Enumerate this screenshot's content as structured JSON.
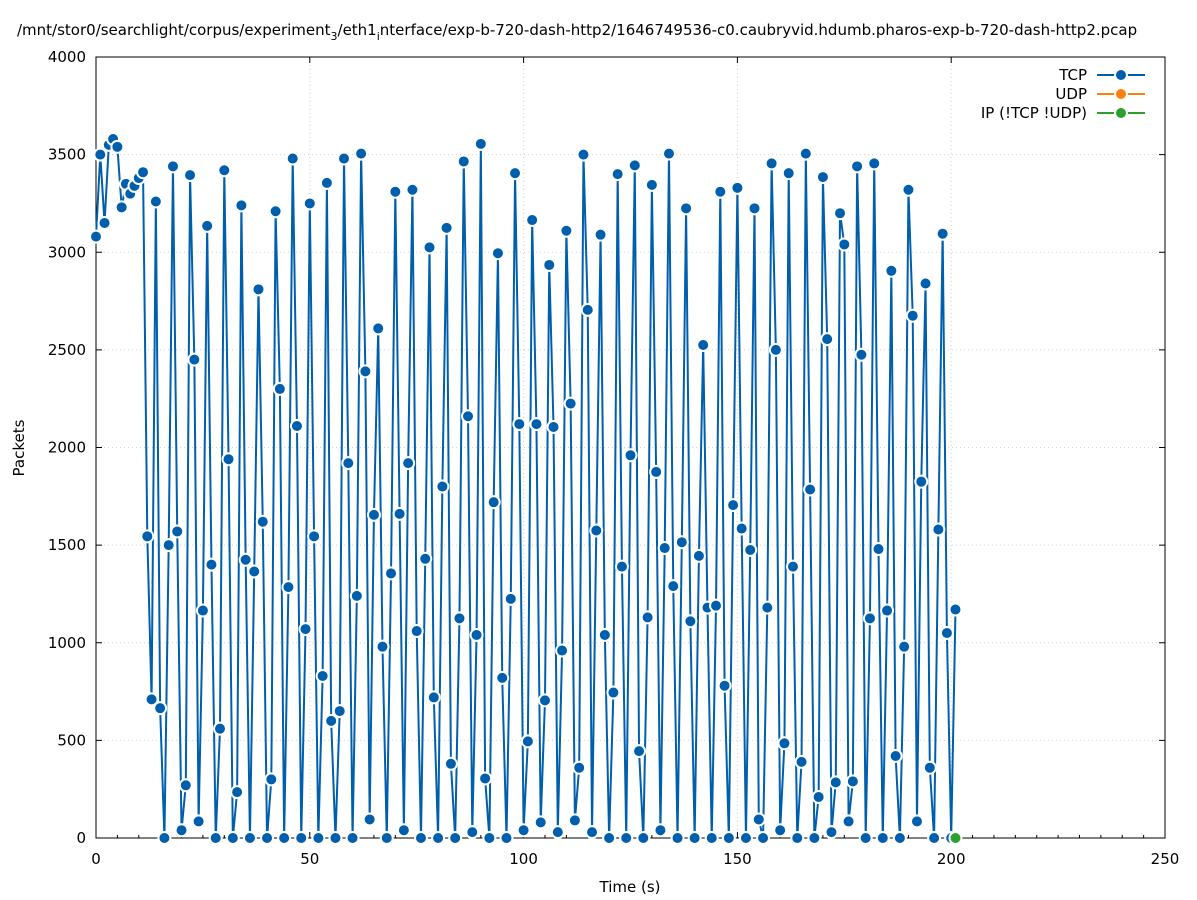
{
  "chart_data": {
    "type": "line",
    "title": "/mnt/stor0/searchlight/corpus/experiment_3/eth1_interface/exp-b-720-dash-http2/1646749536-c0.caubryvid.hdumb.pharos-exp-b-720-dash-http2.pcap",
    "title_main": "/mnt/stor0/searchlight/corpus/experiment",
    "title_sub1": "3",
    "title_mid": "/eth1",
    "title_sub2": "i",
    "title_rest": "nterface/exp-b-720-dash-http2/1646749536-c0.caubryvid.hdumb.pharos-exp-b-720-dash-http2.pcap",
    "xlabel": "Time (s)",
    "ylabel": "Packets",
    "xlim": [
      0,
      250
    ],
    "ylim": [
      0,
      4000
    ],
    "x_ticks": [
      "0",
      "50",
      "100",
      "150",
      "200",
      "250"
    ],
    "y_ticks": [
      "0",
      "500",
      "1000",
      "1500",
      "2000",
      "2500",
      "3000",
      "3500",
      "4000"
    ],
    "grid": true,
    "legend_position": "top-right",
    "series": [
      {
        "name": "TCP",
        "color": "#005fad",
        "points": [
          [
            0,
            3080
          ],
          [
            1,
            3500
          ],
          [
            2,
            3150
          ],
          [
            3,
            3550
          ],
          [
            4,
            3580
          ],
          [
            5,
            3540
          ],
          [
            6,
            3230
          ],
          [
            7,
            3350
          ],
          [
            8,
            3300
          ],
          [
            9,
            3340
          ],
          [
            10,
            3380
          ],
          [
            11,
            3410
          ],
          [
            12,
            1545
          ],
          [
            13,
            710
          ],
          [
            14,
            3260
          ],
          [
            15,
            665
          ],
          [
            16,
            0
          ],
          [
            17,
            1500
          ],
          [
            18,
            3440
          ],
          [
            19,
            1570
          ],
          [
            20,
            40
          ],
          [
            21,
            270
          ],
          [
            22,
            3395
          ],
          [
            23,
            2450
          ],
          [
            24,
            85
          ],
          [
            25,
            1165
          ],
          [
            26,
            3135
          ],
          [
            27,
            1400
          ],
          [
            28,
            0
          ],
          [
            29,
            560
          ],
          [
            30,
            3420
          ],
          [
            31,
            1940
          ],
          [
            32,
            0
          ],
          [
            33,
            235
          ],
          [
            34,
            3240
          ],
          [
            35,
            1425
          ],
          [
            36,
            0
          ],
          [
            37,
            1365
          ],
          [
            38,
            2810
          ],
          [
            39,
            1620
          ],
          [
            40,
            0
          ],
          [
            41,
            300
          ],
          [
            42,
            3210
          ],
          [
            43,
            2300
          ],
          [
            44,
            0
          ],
          [
            45,
            1285
          ],
          [
            46,
            3480
          ],
          [
            47,
            2110
          ],
          [
            48,
            0
          ],
          [
            49,
            1070
          ],
          [
            50,
            3250
          ],
          [
            51,
            1545
          ],
          [
            52,
            0
          ],
          [
            53,
            830
          ],
          [
            54,
            3355
          ],
          [
            55,
            600
          ],
          [
            56,
            0
          ],
          [
            57,
            650
          ],
          [
            58,
            3480
          ],
          [
            59,
            1920
          ],
          [
            60,
            0
          ],
          [
            61,
            1240
          ],
          [
            62,
            3505
          ],
          [
            63,
            2390
          ],
          [
            64,
            95
          ],
          [
            65,
            1655
          ],
          [
            66,
            2610
          ],
          [
            67,
            980
          ],
          [
            68,
            0
          ],
          [
            69,
            1355
          ],
          [
            70,
            3310
          ],
          [
            71,
            1660
          ],
          [
            72,
            40
          ],
          [
            73,
            1920
          ],
          [
            74,
            3320
          ],
          [
            75,
            1060
          ],
          [
            76,
            0
          ],
          [
            77,
            1430
          ],
          [
            78,
            3025
          ],
          [
            79,
            720
          ],
          [
            80,
            0
          ],
          [
            81,
            1800
          ],
          [
            82,
            3125
          ],
          [
            83,
            380
          ],
          [
            84,
            0
          ],
          [
            85,
            1125
          ],
          [
            86,
            3465
          ],
          [
            87,
            2160
          ],
          [
            88,
            30
          ],
          [
            89,
            1040
          ],
          [
            90,
            3555
          ],
          [
            91,
            305
          ],
          [
            92,
            0
          ],
          [
            93,
            1720
          ],
          [
            94,
            2995
          ],
          [
            95,
            820
          ],
          [
            96,
            0
          ],
          [
            97,
            1225
          ],
          [
            98,
            3405
          ],
          [
            99,
            2120
          ],
          [
            100,
            40
          ],
          [
            101,
            495
          ],
          [
            102,
            3165
          ],
          [
            103,
            2120
          ],
          [
            104,
            80
          ],
          [
            105,
            705
          ],
          [
            106,
            2935
          ],
          [
            107,
            2105
          ],
          [
            108,
            30
          ],
          [
            109,
            960
          ],
          [
            110,
            3110
          ],
          [
            111,
            2225
          ],
          [
            112,
            90
          ],
          [
            113,
            360
          ],
          [
            114,
            3500
          ],
          [
            115,
            2705
          ],
          [
            116,
            30
          ],
          [
            117,
            1575
          ],
          [
            118,
            3090
          ],
          [
            119,
            1040
          ],
          [
            120,
            0
          ],
          [
            121,
            745
          ],
          [
            122,
            3400
          ],
          [
            123,
            1390
          ],
          [
            124,
            0
          ],
          [
            125,
            1960
          ],
          [
            126,
            3445
          ],
          [
            127,
            445
          ],
          [
            128,
            0
          ],
          [
            129,
            1130
          ],
          [
            130,
            3345
          ],
          [
            131,
            1875
          ],
          [
            132,
            40
          ],
          [
            133,
            1485
          ],
          [
            134,
            3505
          ],
          [
            135,
            1290
          ],
          [
            136,
            0
          ],
          [
            137,
            1515
          ],
          [
            138,
            3225
          ],
          [
            139,
            1110
          ],
          [
            140,
            0
          ],
          [
            141,
            1445
          ],
          [
            142,
            2525
          ],
          [
            143,
            1180
          ],
          [
            144,
            0
          ],
          [
            145,
            1190
          ],
          [
            146,
            3310
          ],
          [
            147,
            780
          ],
          [
            148,
            0
          ],
          [
            149,
            1705
          ],
          [
            150,
            3330
          ],
          [
            151,
            1585
          ],
          [
            152,
            0
          ],
          [
            153,
            1475
          ],
          [
            154,
            3225
          ],
          [
            155,
            95
          ],
          [
            156,
            0
          ],
          [
            157,
            1180
          ],
          [
            158,
            3455
          ],
          [
            159,
            2500
          ],
          [
            160,
            40
          ],
          [
            161,
            485
          ],
          [
            162,
            3405
          ],
          [
            163,
            1390
          ],
          [
            164,
            0
          ],
          [
            165,
            390
          ],
          [
            166,
            3505
          ],
          [
            167,
            1785
          ],
          [
            168,
            0
          ],
          [
            169,
            210
          ],
          [
            170,
            3385
          ],
          [
            171,
            2555
          ],
          [
            172,
            30
          ],
          [
            173,
            285
          ],
          [
            174,
            3200
          ],
          [
            175,
            3040
          ],
          [
            176,
            85
          ],
          [
            177,
            290
          ],
          [
            178,
            3440
          ],
          [
            179,
            2475
          ],
          [
            180,
            0
          ],
          [
            181,
            1125
          ],
          [
            182,
            3455
          ],
          [
            183,
            1480
          ],
          [
            184,
            0
          ],
          [
            185,
            1165
          ],
          [
            186,
            2905
          ],
          [
            187,
            420
          ],
          [
            188,
            0
          ],
          [
            189,
            980
          ],
          [
            190,
            3320
          ],
          [
            191,
            2675
          ],
          [
            192,
            85
          ],
          [
            193,
            1825
          ],
          [
            194,
            2840
          ],
          [
            195,
            360
          ],
          [
            196,
            0
          ],
          [
            197,
            1580
          ],
          [
            198,
            3095
          ],
          [
            199,
            1050
          ],
          [
            200,
            0
          ],
          [
            201,
            1170
          ]
        ]
      },
      {
        "name": "UDP",
        "color": "#ff7f0e",
        "points": []
      },
      {
        "name": "IP (!TCP  !UDP)",
        "color": "#2ca02c",
        "points": [
          [
            201,
            0
          ]
        ]
      }
    ]
  }
}
